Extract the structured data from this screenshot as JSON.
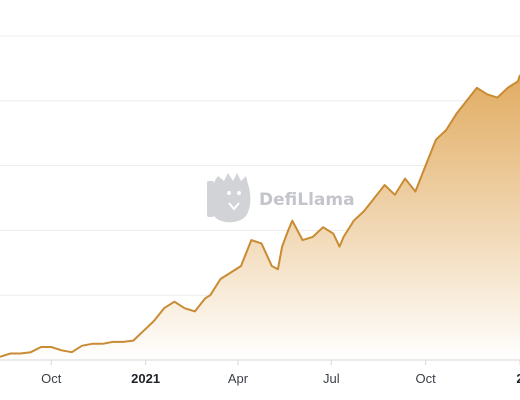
{
  "watermark": {
    "text": "DefiLlama",
    "icon": "llama-logo-icon"
  },
  "colors": {
    "line": "#c98b33",
    "area_top": "#e0a85a",
    "area_bottom": "#ffffff",
    "grid": "#ececec",
    "axis": "#d7d7d7",
    "watermark": "#b9bcc2"
  },
  "chart_data": {
    "type": "area",
    "title": "",
    "xlabel": "",
    "ylabel": "",
    "grid": true,
    "x_ticks": [
      {
        "date": "2020-10-01",
        "label": "Oct",
        "bold": false
      },
      {
        "date": "2021-01-01",
        "label": "2021",
        "bold": true
      },
      {
        "date": "2021-04-01",
        "label": "Apr",
        "bold": false
      },
      {
        "date": "2021-07-01",
        "label": "Jul",
        "bold": false
      },
      {
        "date": "2021-10-01",
        "label": "Oct",
        "bold": false
      },
      {
        "date": "2022-01-01",
        "label": "2",
        "bold": true
      }
    ],
    "xlim": [
      "2020-08-12",
      "2022-01-01"
    ],
    "ylim": [
      0,
      5
    ],
    "y_gridlines": [
      1,
      2,
      3,
      4,
      5
    ],
    "series": [
      {
        "x": [
          "2020-08-12",
          "2020-08-22",
          "2020-09-01",
          "2020-09-11",
          "2020-09-21",
          "2020-10-01",
          "2020-10-11",
          "2020-10-21",
          "2020-10-31",
          "2020-11-10",
          "2020-11-20",
          "2020-11-30",
          "2020-12-10",
          "2020-12-20",
          "2020-12-30",
          "2021-01-09",
          "2021-01-19",
          "2021-01-29",
          "2021-02-08",
          "2021-02-18",
          "2021-02-28",
          "2021-03-05",
          "2021-03-15",
          "2021-03-25",
          "2021-04-04",
          "2021-04-14",
          "2021-04-24",
          "2021-05-04",
          "2021-05-10",
          "2021-05-14",
          "2021-05-20",
          "2021-05-24",
          "2021-06-03",
          "2021-06-13",
          "2021-06-23",
          "2021-07-03",
          "2021-07-09",
          "2021-07-13",
          "2021-07-23",
          "2021-08-02",
          "2021-08-12",
          "2021-08-22",
          "2021-09-01",
          "2021-09-07",
          "2021-09-11",
          "2021-09-21",
          "2021-10-01",
          "2021-10-11",
          "2021-10-21",
          "2021-10-31",
          "2021-11-10",
          "2021-11-20",
          "2021-11-30",
          "2021-12-10",
          "2021-12-20",
          "2021-12-30",
          "2022-01-01"
        ],
        "values": [
          0.05,
          0.1,
          0.1,
          0.12,
          0.2,
          0.2,
          0.15,
          0.12,
          0.22,
          0.25,
          0.25,
          0.28,
          0.28,
          0.3,
          0.45,
          0.6,
          0.8,
          0.9,
          0.8,
          0.75,
          0.95,
          1.0,
          1.25,
          1.35,
          1.45,
          1.85,
          1.8,
          1.45,
          1.4,
          1.75,
          2.0,
          2.15,
          1.85,
          1.9,
          2.05,
          1.95,
          1.75,
          1.9,
          2.15,
          2.3,
          2.5,
          2.7,
          2.55,
          2.7,
          2.8,
          2.6,
          3.0,
          3.4,
          3.55,
          3.8,
          4.0,
          4.2,
          4.1,
          4.05,
          4.2,
          4.3,
          4.4
        ]
      }
    ]
  }
}
